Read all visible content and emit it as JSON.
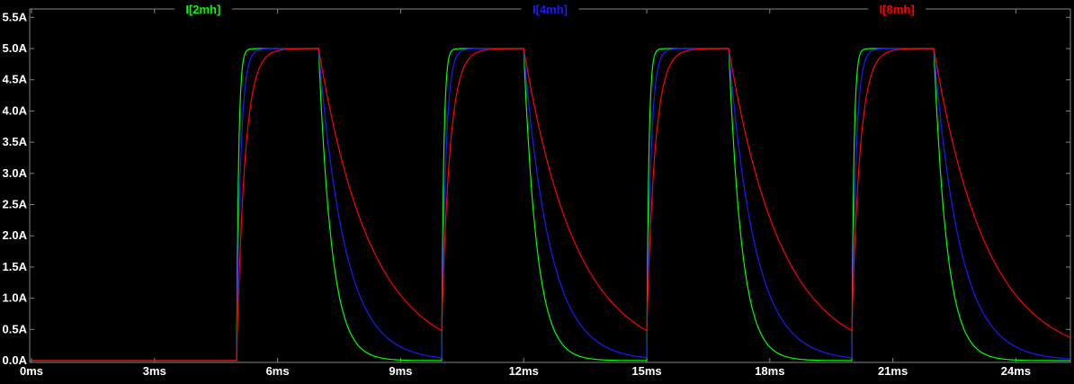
{
  "colors": {
    "background": "#000000",
    "plot_border": "#848484",
    "axis_text": "#ffffff"
  },
  "chart_data": {
    "type": "line",
    "x_unit": "ms",
    "y_unit": "A",
    "xlim_ms": [
      0,
      25.4
    ],
    "ylim_A": [
      0,
      5.5
    ],
    "grid": false,
    "legend_position": "top",
    "x_ticks": [
      "0ms",
      "3ms",
      "6ms",
      "9ms",
      "12ms",
      "15ms",
      "18ms",
      "21ms",
      "24ms"
    ],
    "x_tick_values_ms": [
      0,
      3,
      6,
      9,
      12,
      15,
      18,
      21,
      24
    ],
    "y_ticks": [
      "5.5A",
      "5.0A",
      "4.5A",
      "4.0A",
      "3.5A",
      "3.0A",
      "2.5A",
      "2.0A",
      "1.5A",
      "1.0A",
      "0.5A",
      "0.0A"
    ],
    "y_tick_values_A": [
      5.5,
      5.0,
      4.5,
      4.0,
      3.5,
      3.0,
      2.5,
      2.0,
      1.5,
      1.0,
      0.5,
      0.0
    ],
    "series": [
      {
        "id": "i-2mh",
        "name": "I[2mh]",
        "color": "#00ff00",
        "tau_rise_ms": 0.05,
        "tau_fall_ms": 0.32
      },
      {
        "id": "i-4mh",
        "name": "I[4mh]",
        "color": "#1a1aff",
        "tau_rise_ms": 0.1,
        "tau_fall_ms": 0.64
      },
      {
        "id": "i-8mh",
        "name": "I[8mh]",
        "color": "#ff0000",
        "tau_rise_ms": 0.2,
        "tau_fall_ms": 1.28
      }
    ],
    "waveform": {
      "description": "Periodic inductor current pulses: zero until 5ms, then exponential rise to 5.0A during on-intervals and exponential decay toward 0A during off-intervals; rise/fall time constants scale with inductance (2mH fastest, 8mH slowest).",
      "on_level_A": 5.0,
      "off_level_A": 0.0,
      "pulse_on_ms": [
        5,
        10,
        15,
        20
      ],
      "pulse_off_ms": [
        7,
        12,
        17,
        22
      ],
      "period_ms": 5
    }
  }
}
